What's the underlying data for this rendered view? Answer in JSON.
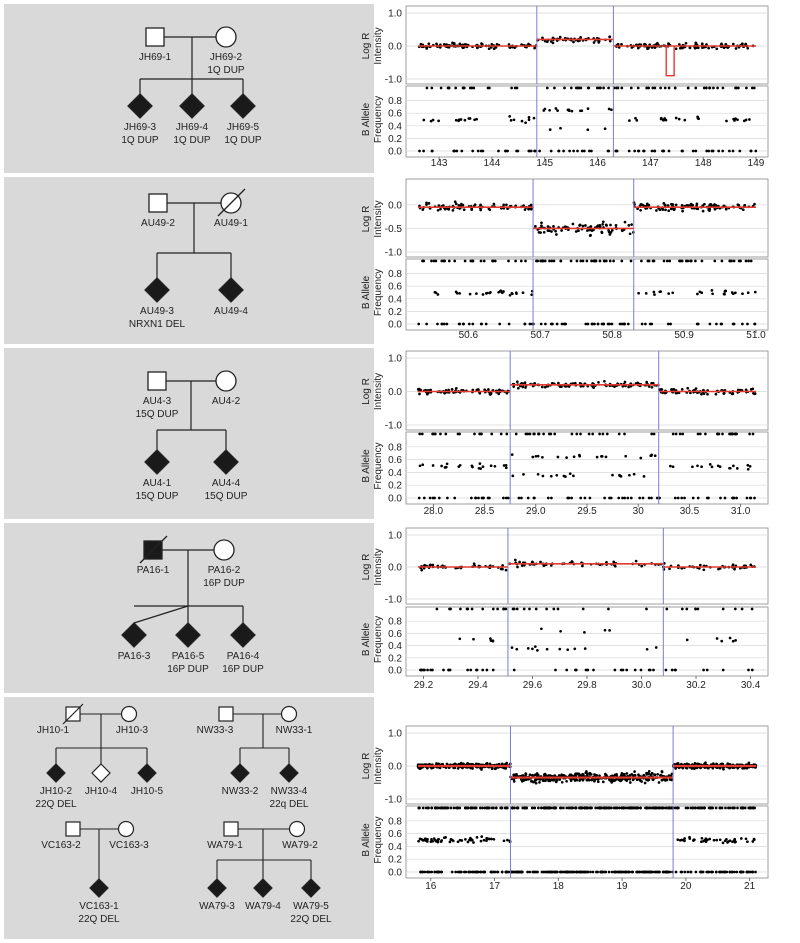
{
  "colors": {
    "left_bg": "#d9d9d9",
    "right_bg": "#ffffff",
    "divider": "#ffffff",
    "affected": "#1a1a1a",
    "line": "#222222",
    "logr_fit": "#e23a2e",
    "boundary": "#7b7bd6",
    "grid": "#d8d8d8"
  },
  "panels": [
    {
      "id": "panel-1",
      "pedigree": {
        "parents": [
          {
            "id": "JH69-1",
            "label": "JH69-1",
            "sub": "",
            "shape": "square",
            "affected": false,
            "deceased": false
          },
          {
            "id": "JH69-2",
            "label": "JH69-2",
            "sub": "1Q DUP",
            "shape": "circle",
            "affected": false,
            "deceased": false
          }
        ],
        "children": [
          {
            "id": "JH69-3",
            "label": "JH69-3",
            "sub": "1Q DUP",
            "shape": "diamond",
            "affected": true
          },
          {
            "id": "JH69-4",
            "label": "JH69-4",
            "sub": "1Q DUP",
            "shape": "diamond",
            "affected": true
          },
          {
            "id": "JH69-5",
            "label": "JH69-5",
            "sub": "1Q DUP",
            "shape": "diamond",
            "affected": true
          }
        ]
      },
      "chart_data": {
        "type": "scatter",
        "top_ylabel": [
          "Log R",
          "Intensity"
        ],
        "bottom_ylabel": [
          "B Allele",
          "Frequency"
        ],
        "x_ticks": [
          "143",
          "144",
          "145",
          "146",
          "147",
          "148",
          "149"
        ],
        "xlim": [
          142.6,
          149
        ],
        "top_ticks": [
          "1.0",
          "0.0",
          "-1.0"
        ],
        "top_ylim": [
          -1.0,
          1.0
        ],
        "bottom_ticks": [
          "0.8",
          "0.6",
          "0.4",
          "0.2",
          "0.0"
        ],
        "bottom_ylim": [
          0.0,
          1.0
        ],
        "boundaries": [
          144.85,
          146.3
        ],
        "logr_segments": [
          {
            "x0": 142.6,
            "x1": 144.85,
            "y": 0.0
          },
          {
            "x0": 144.85,
            "x1": 146.3,
            "y": 0.2
          },
          {
            "x0": 146.3,
            "x1": 149.0,
            "y": 0.0
          }
        ],
        "dip": {
          "x0": 147.3,
          "x1": 147.45,
          "y": -0.9
        },
        "baf_hetero": {
          "dup": [
            0.35,
            0.65
          ],
          "normal": [
            0.5
          ]
        },
        "normal_ranges": [
          [
            142.6,
            144.85
          ],
          [
            146.3,
            149.0
          ]
        ],
        "dup_ranges": [
          [
            144.85,
            146.3
          ]
        ],
        "gaps": [
          [
            144.15,
            144.25
          ]
        ]
      }
    },
    {
      "id": "panel-2",
      "pedigree": {
        "parents": [
          {
            "id": "AU49-2",
            "label": "AU49-2",
            "sub": "",
            "shape": "square",
            "affected": false,
            "deceased": false
          },
          {
            "id": "AU49-1",
            "label": "AU49-1",
            "sub": "",
            "shape": "circle",
            "affected": false,
            "deceased": true
          }
        ],
        "children": [
          {
            "id": "AU49-3",
            "label": "AU49-3",
            "sub": "NRXN1 DEL",
            "shape": "diamond",
            "affected": true
          },
          {
            "id": "AU49-4",
            "label": "AU49-4",
            "sub": "",
            "shape": "diamond",
            "affected": true
          }
        ]
      },
      "chart_data": {
        "type": "scatter",
        "top_ylabel": [
          "Log R",
          "Intensity"
        ],
        "bottom_ylabel": [
          "B Allele",
          "Frequency"
        ],
        "x_ticks": [
          "50.6",
          "50.7",
          "50.8",
          "50.9",
          "51.0"
        ],
        "xlim": [
          50.53,
          51.0
        ],
        "top_ticks": [
          "0.0",
          "-0.5",
          "-1.0"
        ],
        "top_ylim": [
          -1.0,
          0.4
        ],
        "bottom_ticks": [
          "0.8",
          "0.6",
          "0.4",
          "0.2",
          "0.0"
        ],
        "bottom_ylim": [
          0.0,
          1.0
        ],
        "boundaries": [
          50.69,
          50.83
        ],
        "logr_segments": [
          {
            "x0": 50.53,
            "x1": 50.69,
            "y": -0.05
          },
          {
            "x0": 50.69,
            "x1": 50.83,
            "y": -0.5
          },
          {
            "x0": 50.83,
            "x1": 51.0,
            "y": -0.05
          }
        ],
        "baf_hetero": {
          "dup": [],
          "normal": [
            0.5
          ]
        },
        "normal_ranges": [
          [
            50.53,
            50.69
          ],
          [
            50.83,
            51.0
          ]
        ],
        "del_ranges": [
          [
            50.69,
            50.83
          ]
        ]
      }
    },
    {
      "id": "panel-3",
      "pedigree": {
        "parents": [
          {
            "id": "AU4-3",
            "label": "AU4-3",
            "sub": "15Q DUP",
            "shape": "square",
            "affected": false,
            "deceased": false
          },
          {
            "id": "AU4-2",
            "label": "AU4-2",
            "sub": "",
            "shape": "circle",
            "affected": false,
            "deceased": false
          }
        ],
        "children": [
          {
            "id": "AU4-1",
            "label": "AU4-1",
            "sub": "15Q DUP",
            "shape": "diamond",
            "affected": true
          },
          {
            "id": "AU4-4",
            "label": "AU4-4",
            "sub": "15Q DUP",
            "shape": "diamond",
            "affected": true
          }
        ]
      },
      "chart_data": {
        "type": "scatter",
        "top_ylabel": [
          "Log R",
          "Intensity"
        ],
        "bottom_ylabel": [
          "B Allele",
          "Frequency"
        ],
        "x_ticks": [
          "28.0",
          "28.5",
          "29.0",
          "29.5",
          "30",
          "30.5",
          "31.0"
        ],
        "xlim": [
          27.85,
          31.15
        ],
        "top_ticks": [
          "1.0",
          "0.0",
          "-1.0"
        ],
        "top_ylim": [
          -1.0,
          1.0
        ],
        "bottom_ticks": [
          "0.8",
          "0.6",
          "0.4",
          "0.2",
          "0.0"
        ],
        "bottom_ylim": [
          0.0,
          1.0
        ],
        "boundaries": [
          28.75,
          30.2
        ],
        "logr_segments": [
          {
            "x0": 27.85,
            "x1": 28.75,
            "y": 0.0
          },
          {
            "x0": 28.75,
            "x1": 30.2,
            "y": 0.2
          },
          {
            "x0": 30.2,
            "x1": 31.15,
            "y": 0.0
          }
        ],
        "baf_hetero": {
          "dup": [
            0.35,
            0.65
          ],
          "normal": [
            0.5
          ]
        },
        "normal_ranges": [
          [
            27.85,
            28.75
          ],
          [
            30.2,
            31.15
          ]
        ],
        "dup_ranges": [
          [
            28.75,
            30.2
          ]
        ]
      }
    },
    {
      "id": "panel-4",
      "pedigree": {
        "parents": [
          {
            "id": "PA16-1",
            "label": "PA16-1",
            "sub": "",
            "shape": "square",
            "affected": true,
            "deceased": true
          },
          {
            "id": "PA16-2",
            "label": "PA16-2",
            "sub": "16P DUP",
            "shape": "circle",
            "affected": false,
            "deceased": false
          }
        ],
        "children": [
          {
            "id": "PA16-3",
            "label": "PA16-3",
            "sub": "",
            "shape": "diamond",
            "affected": true
          },
          {
            "id": "PA16-5",
            "label": "PA16-5",
            "sub": "16P DUP",
            "shape": "diamond",
            "affected": true
          },
          {
            "id": "PA16-4",
            "label": "PA16-4",
            "sub": "16P DUP",
            "shape": "diamond",
            "affected": true
          }
        ]
      },
      "chart_data": {
        "type": "scatter",
        "top_ylabel": [
          "Log R",
          "Intensity"
        ],
        "bottom_ylabel": [
          "B Allele",
          "Frequency"
        ],
        "x_ticks": [
          "29.2",
          "29.4",
          "29.6",
          "29.8",
          "30.0",
          "30.2",
          "30.4"
        ],
        "xlim": [
          29.18,
          30.42
        ],
        "top_ticks": [
          "1.0",
          "0.0",
          "-1.0"
        ],
        "top_ylim": [
          -1.0,
          1.0
        ],
        "bottom_ticks": [
          "0.8",
          "0.6",
          "0.4",
          "0.2",
          "0.0"
        ],
        "bottom_ylim": [
          0.0,
          1.0
        ],
        "boundaries": [
          29.51,
          30.08
        ],
        "logr_segments": [
          {
            "x0": 29.18,
            "x1": 29.51,
            "y": 0.0
          },
          {
            "x0": 29.51,
            "x1": 30.08,
            "y": 0.1
          },
          {
            "x0": 30.08,
            "x1": 30.42,
            "y": 0.0
          }
        ],
        "baf_hetero": {
          "dup": [
            0.35,
            0.65
          ],
          "normal": [
            0.5
          ]
        },
        "normal_ranges": [
          [
            29.18,
            29.51
          ],
          [
            30.08,
            30.42
          ]
        ],
        "dup_ranges": [
          [
            29.51,
            30.08
          ]
        ],
        "sparse": true
      }
    },
    {
      "id": "panel-5",
      "pedigrees": [
        {
          "parents": [
            {
              "id": "JH10-1",
              "label": "JH10-1",
              "sub": "",
              "shape": "square",
              "affected": false,
              "deceased": true
            },
            {
              "id": "JH10-3",
              "label": "JH10-3",
              "sub": "",
              "shape": "circle",
              "affected": false,
              "deceased": false
            }
          ],
          "children": [
            {
              "id": "JH10-2",
              "label": "JH10-2",
              "sub": "22Q DEL",
              "shape": "diamond",
              "affected": true
            },
            {
              "id": "JH10-4",
              "label": "JH10-4",
              "sub": "",
              "shape": "diamond",
              "affected": false
            },
            {
              "id": "JH10-5",
              "label": "JH10-5",
              "sub": "",
              "shape": "diamond",
              "affected": true
            }
          ]
        },
        {
          "parents": [
            {
              "id": "NW33-3",
              "label": "NW33-3",
              "sub": "",
              "shape": "square",
              "affected": false,
              "deceased": false
            },
            {
              "id": "NW33-1",
              "label": "NW33-1",
              "sub": "",
              "shape": "circle",
              "affected": false,
              "deceased": false
            }
          ],
          "children": [
            {
              "id": "NW33-2",
              "label": "NW33-2",
              "sub": "",
              "shape": "diamond",
              "affected": true
            },
            {
              "id": "NW33-4",
              "label": "NW33-4",
              "sub": "22q DEL",
              "shape": "diamond",
              "affected": true
            }
          ]
        },
        {
          "parents": [
            {
              "id": "VC163-2",
              "label": "VC163-2",
              "sub": "",
              "shape": "square",
              "affected": false,
              "deceased": false
            },
            {
              "id": "VC163-3",
              "label": "VC163-3",
              "sub": "",
              "shape": "circle",
              "affected": false,
              "deceased": false
            }
          ],
          "children": [
            {
              "id": "VC163-1",
              "label": "VC163-1",
              "sub": "22Q DEL",
              "shape": "diamond",
              "affected": true
            }
          ]
        },
        {
          "parents": [
            {
              "id": "WA79-1",
              "label": "WA79-1",
              "sub": "",
              "shape": "square",
              "affected": false,
              "deceased": false
            },
            {
              "id": "WA79-2",
              "label": "WA79-2",
              "sub": "",
              "shape": "circle",
              "affected": false,
              "deceased": false
            }
          ],
          "children": [
            {
              "id": "WA79-3",
              "label": "WA79-3",
              "sub": "",
              "shape": "diamond",
              "affected": true
            },
            {
              "id": "WA79-4",
              "label": "WA79-4",
              "sub": "",
              "shape": "diamond",
              "affected": true
            },
            {
              "id": "WA79-5",
              "label": "WA79-5",
              "sub": "22Q DEL",
              "shape": "diamond",
              "affected": true
            }
          ]
        }
      ],
      "chart_data": {
        "type": "scatter",
        "top_ylabel": [
          "Log R",
          "Intensity"
        ],
        "bottom_ylabel": [
          "B Allele",
          "Frequency"
        ],
        "x_ticks": [
          "16",
          "17",
          "18",
          "19",
          "20",
          "21"
        ],
        "xlim": [
          15.8,
          21.1
        ],
        "top_ticks": [
          "1.0",
          "0.0",
          "-1.0"
        ],
        "top_ylim": [
          -1.0,
          1.0
        ],
        "bottom_ticks": [
          "0.8",
          "0.6",
          "0.4",
          "0.2",
          "0.0"
        ],
        "bottom_ylim": [
          0.0,
          1.0
        ],
        "boundaries": [
          17.25,
          19.8
        ],
        "logr_segments": [
          {
            "x0": 15.8,
            "x1": 17.25,
            "y": 0.0
          },
          {
            "x0": 17.25,
            "x1": 19.8,
            "y": -0.35
          },
          {
            "x0": 19.8,
            "x1": 21.1,
            "y": 0.0
          }
        ],
        "baf_hetero": {
          "dup": [],
          "normal": [
            0.5
          ]
        },
        "normal_ranges": [
          [
            15.8,
            17.25
          ],
          [
            19.8,
            21.1
          ]
        ],
        "del_ranges": [
          [
            17.25,
            19.8
          ]
        ],
        "dense": true
      }
    }
  ]
}
